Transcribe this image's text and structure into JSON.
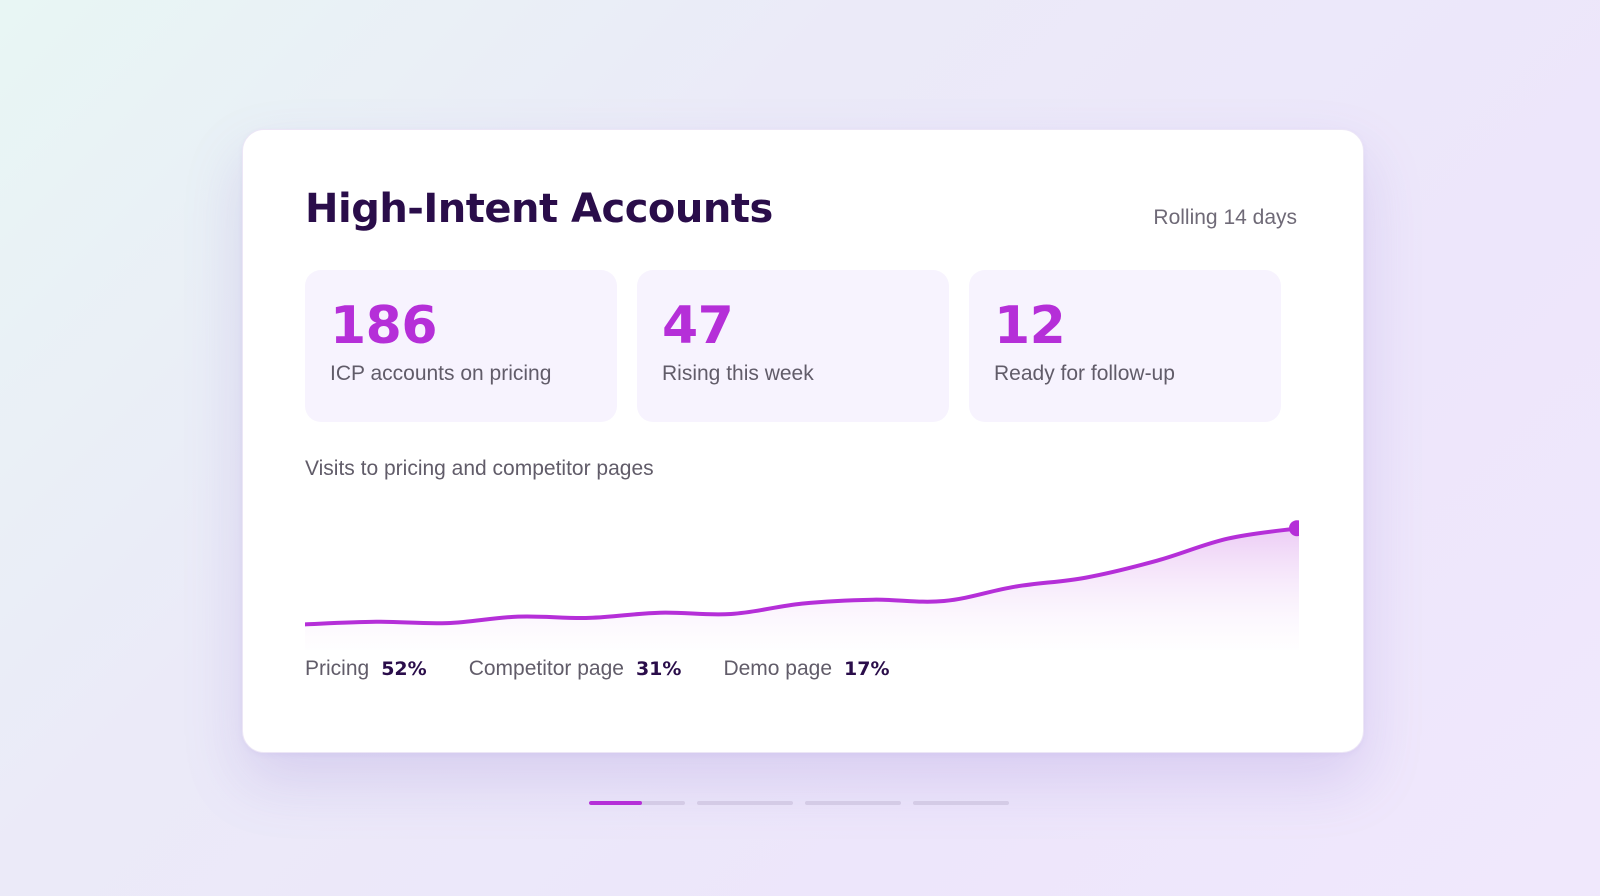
{
  "card": {
    "title": "High-Intent Accounts",
    "range_label": "Rolling 14 days"
  },
  "kpis": [
    {
      "value": "186",
      "label": "ICP accounts on pricing"
    },
    {
      "value": "47",
      "label": "Rising this week"
    },
    {
      "value": "12",
      "label": "Ready for follow-up"
    }
  ],
  "chart": {
    "title": "Visits to pricing and competitor pages"
  },
  "chart_data": {
    "type": "area",
    "title": "Visits to pricing and competitor pages",
    "x": [
      1,
      2,
      3,
      4,
      5,
      6,
      7,
      8,
      9,
      10,
      11,
      12,
      13,
      14,
      15
    ],
    "values": [
      12,
      14,
      13,
      18,
      17,
      21,
      20,
      28,
      31,
      30,
      41,
      48,
      61,
      78,
      86
    ],
    "ylim": [
      0,
      100
    ],
    "grid": false,
    "colors": {
      "line": "#b52fd8",
      "fill": "#e9c9f3"
    }
  },
  "legend": [
    {
      "name": "Pricing",
      "value": "52%"
    },
    {
      "name": "Competitor page",
      "value": "31%"
    },
    {
      "name": "Demo page",
      "value": "17%"
    }
  ],
  "pager": {
    "count": 4,
    "active_index": 0,
    "active_progress": 0.55
  }
}
